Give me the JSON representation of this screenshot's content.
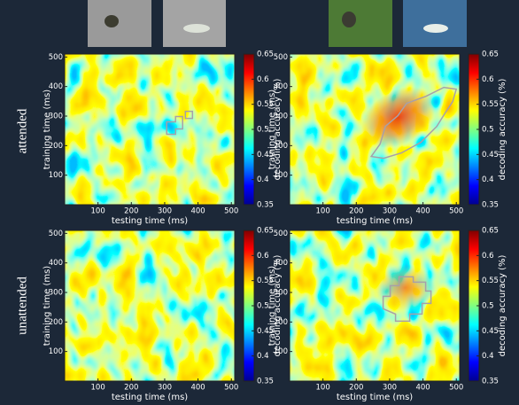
{
  "row_labels": [
    "attended",
    "unattended"
  ],
  "axes": {
    "xlabel": "testing time (ms)",
    "ylabel": "training time (ms)",
    "xlim": [
      0,
      510
    ],
    "ylim": [
      0,
      510
    ],
    "xticks": [
      100,
      200,
      300,
      400,
      500
    ],
    "yticks": [
      100,
      200,
      300,
      400,
      500
    ]
  },
  "colorbar": {
    "label": "decoding accuracy (%)",
    "lim": [
      0.35,
      0.65
    ],
    "ticks": [
      0.35,
      0.4,
      0.45,
      0.5,
      0.55,
      0.6,
      0.65
    ]
  }
}
